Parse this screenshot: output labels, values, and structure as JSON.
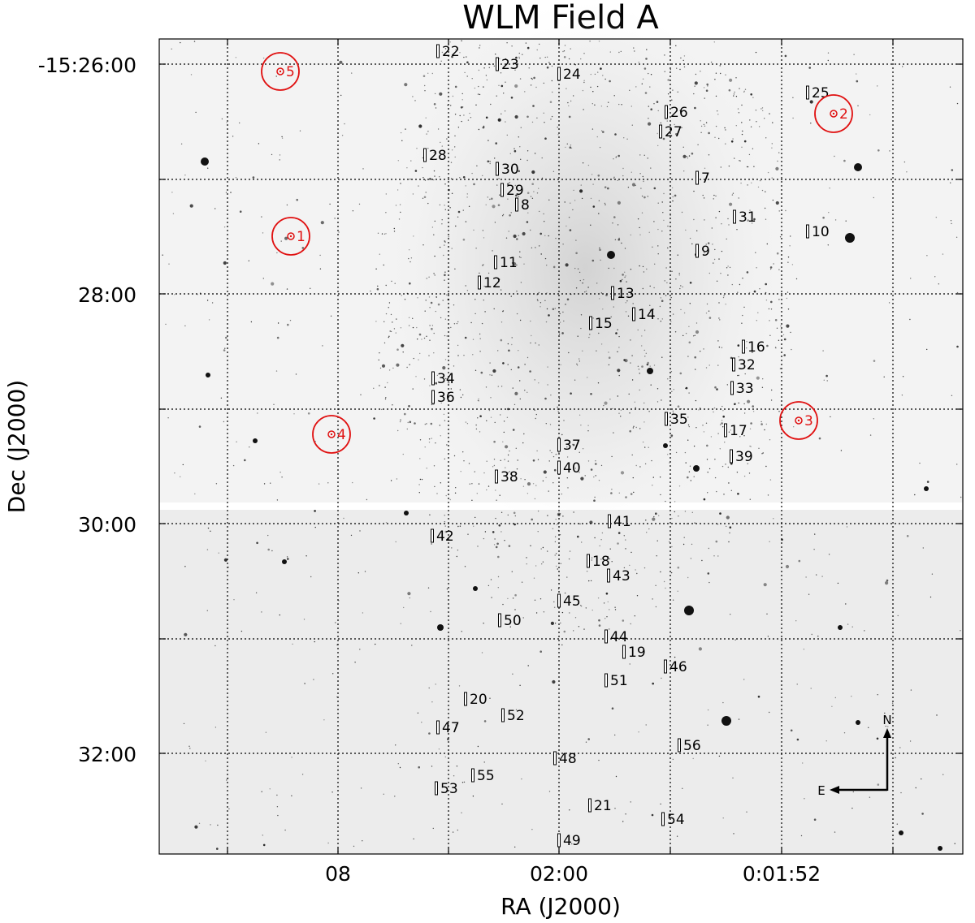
{
  "title": "WLM Field A",
  "axes": {
    "xlabel": "RA (J2000)",
    "ylabel": "Dec (J2000)",
    "xticks": [
      "08",
      "02:00",
      "0:01:52"
    ],
    "yticks": [
      "-15:26:00",
      "28:00",
      "30:00",
      "32:00"
    ]
  },
  "compass": {
    "north": "N",
    "east": "E"
  },
  "colors": {
    "frame": "#000000",
    "grid": "#000000",
    "reference_marker": "#e01010",
    "upper_chip": "#f3f3f3",
    "lower_chip": "#ececec",
    "star": "#111111"
  },
  "reference_stars": [
    {
      "id": "1",
      "label": "1"
    },
    {
      "id": "2",
      "label": "2"
    },
    {
      "id": "3",
      "label": "3"
    },
    {
      "id": "4",
      "label": "4"
    },
    {
      "id": "5",
      "label": "5"
    }
  ],
  "slits": [
    {
      "label": "7"
    },
    {
      "label": "8"
    },
    {
      "label": "9"
    },
    {
      "label": "10"
    },
    {
      "label": "11"
    },
    {
      "label": "12"
    },
    {
      "label": "13"
    },
    {
      "label": "14"
    },
    {
      "label": "15"
    },
    {
      "label": "16"
    },
    {
      "label": "17"
    },
    {
      "label": "18"
    },
    {
      "label": "19"
    },
    {
      "label": "20"
    },
    {
      "label": "21"
    },
    {
      "label": "22"
    },
    {
      "label": "23"
    },
    {
      "label": "24"
    },
    {
      "label": "25"
    },
    {
      "label": "26"
    },
    {
      "label": "27"
    },
    {
      "label": "28"
    },
    {
      "label": "29"
    },
    {
      "label": "30"
    },
    {
      "label": "31"
    },
    {
      "label": "32"
    },
    {
      "label": "33"
    },
    {
      "label": "34"
    },
    {
      "label": "35"
    },
    {
      "label": "36"
    },
    {
      "label": "37"
    },
    {
      "label": "38"
    },
    {
      "label": "39"
    },
    {
      "label": "40"
    },
    {
      "label": "41"
    },
    {
      "label": "42"
    },
    {
      "label": "43"
    },
    {
      "label": "44"
    },
    {
      "label": "45"
    },
    {
      "label": "46"
    },
    {
      "label": "47"
    },
    {
      "label": "48"
    },
    {
      "label": "49"
    },
    {
      "label": "50"
    },
    {
      "label": "51"
    },
    {
      "label": "52"
    },
    {
      "label": "53"
    },
    {
      "label": "54"
    },
    {
      "label": "55"
    },
    {
      "label": "56"
    }
  ]
}
